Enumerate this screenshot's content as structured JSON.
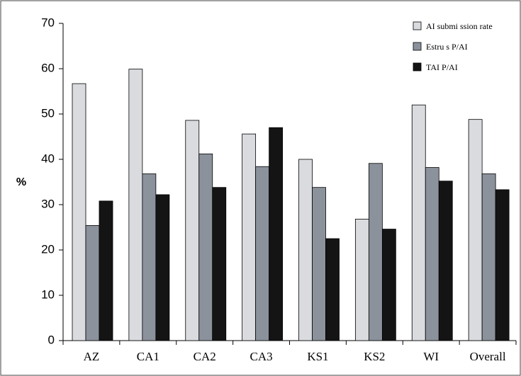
{
  "chart_data": {
    "type": "bar",
    "title": "",
    "xlabel": "",
    "ylabel": "%",
    "ylim": [
      0,
      70
    ],
    "yticks": [
      0,
      10,
      20,
      30,
      40,
      50,
      60,
      70
    ],
    "grid": false,
    "legend_position": "top-right",
    "categories": [
      "AZ",
      "CA1",
      "CA2",
      "CA3",
      "KS1",
      "KS2",
      "WI",
      "Overall"
    ],
    "series": [
      {
        "name": "AI submi ssion rate",
        "color": "#d9dbdf",
        "values": [
          56.7,
          59.9,
          48.6,
          45.6,
          40.0,
          26.8,
          52.0,
          48.8
        ]
      },
      {
        "name": "Estru s P/AI",
        "color": "#8b929b",
        "values": [
          25.4,
          36.8,
          41.2,
          38.4,
          33.8,
          39.1,
          38.2,
          36.8
        ]
      },
      {
        "name": "TAI  P/AI",
        "color": "#141414",
        "values": [
          30.8,
          32.2,
          33.8,
          47.0,
          22.5,
          24.6,
          35.2,
          33.3
        ]
      }
    ]
  }
}
